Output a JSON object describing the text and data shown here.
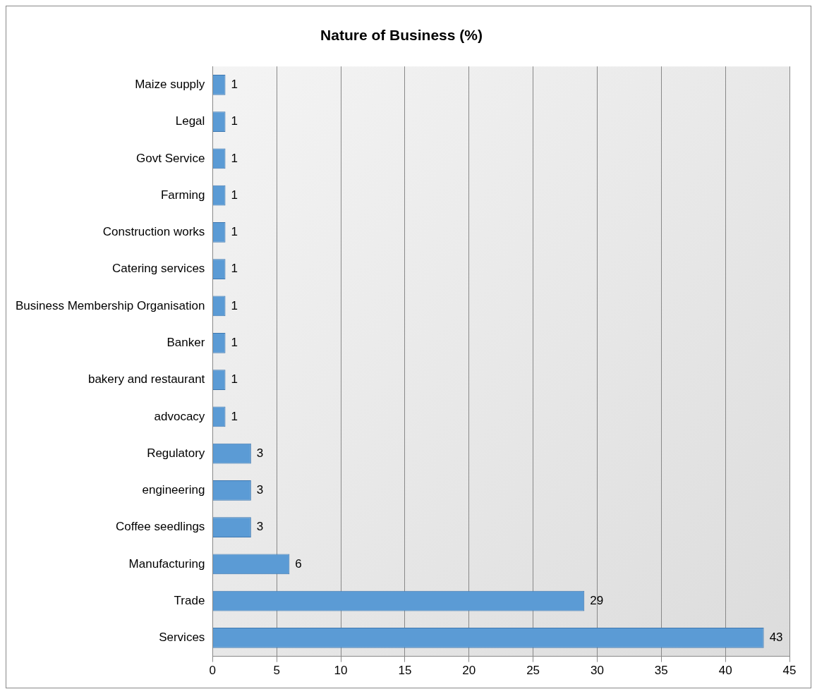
{
  "chart_data": {
    "type": "bar",
    "title": "Nature of Business (%)",
    "orientation": "horizontal",
    "categories": [
      "Maize supply",
      "Legal",
      "Govt Service",
      "Farming",
      "Construction works",
      "Catering services",
      "Business Membership Organisation",
      "Banker",
      "bakery and restaurant",
      "advocacy",
      "Regulatory",
      "engineering",
      "Coffee seedlings",
      "Manufacturing",
      "Trade",
      "Services"
    ],
    "values": [
      1,
      1,
      1,
      1,
      1,
      1,
      1,
      1,
      1,
      1,
      3,
      3,
      3,
      6,
      29,
      43
    ],
    "color": "#5b9bd5",
    "xlim": [
      0,
      45
    ],
    "xticks": [
      0,
      5,
      10,
      15,
      20,
      25,
      30,
      35,
      40,
      45
    ],
    "grid": "x",
    "legend": false,
    "data_labels": true
  }
}
